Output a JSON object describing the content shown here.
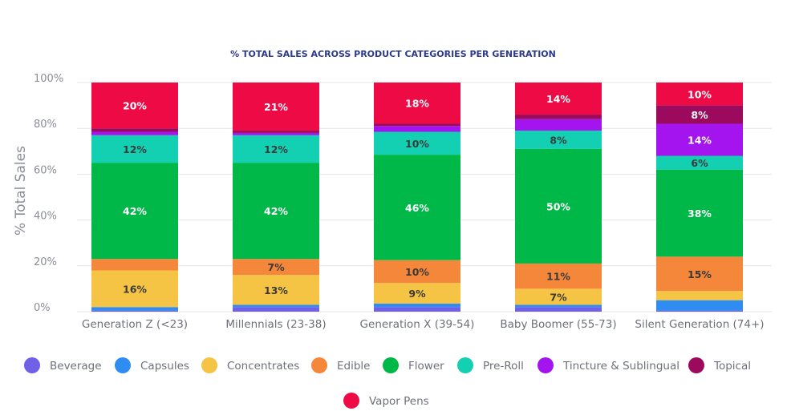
{
  "chart_data": {
    "type": "bar",
    "stacked": true,
    "title": "% TOTAL SALES ACROSS PRODUCT CATEGORIES PER GENERATION",
    "xlabel": "",
    "ylabel": "% Total Sales",
    "ylim": [
      0,
      100
    ],
    "yticks": [
      "0%",
      "20%",
      "40%",
      "60%",
      "80%",
      "100%"
    ],
    "ytick_values": [
      0,
      20,
      40,
      60,
      80,
      100
    ],
    "grid": true,
    "legend_position": "bottom",
    "categories": [
      "Generation Z (<23)",
      "Millennials (23-38)",
      "Generation X (39-54)",
      "Baby Boomer (55-73)",
      "Silent Generation (74+)"
    ],
    "series": [
      {
        "name": "Beverage",
        "color": "#7060e8",
        "values": [
          0.5,
          2,
          2,
          2,
          0.5
        ]
      },
      {
        "name": "Capsules",
        "color": "#2f8cf0",
        "values": [
          1.5,
          1,
          1.5,
          1,
          4.5
        ]
      },
      {
        "name": "Concentrates",
        "color": "#f6c445",
        "values": [
          16,
          13,
          9,
          7,
          4
        ]
      },
      {
        "name": "Edible",
        "color": "#f5873b",
        "values": [
          5,
          7,
          10,
          11,
          15
        ]
      },
      {
        "name": "Flower",
        "color": "#00b847",
        "values": [
          42,
          42,
          46,
          50,
          38
        ]
      },
      {
        "name": "Pre-Roll",
        "color": "#14d0b2",
        "values": [
          12,
          12,
          10,
          8,
          6
        ]
      },
      {
        "name": "Tincture & Sublingual",
        "color": "#a414ee",
        "values": [
          1.5,
          1,
          2.5,
          5,
          14
        ]
      },
      {
        "name": "Topical",
        "color": "#9b0a5c",
        "values": [
          1.5,
          1,
          1,
          2,
          8
        ]
      },
      {
        "name": "Vapor Pens",
        "color": "#ee0a45",
        "values": [
          20,
          21,
          18,
          14,
          10
        ]
      }
    ],
    "data_labels": [
      [
        "",
        "",
        "16%",
        "",
        "42%",
        "12%",
        "",
        "",
        "20%"
      ],
      [
        "",
        "",
        "13%",
        "7%",
        "42%",
        "12%",
        "",
        "",
        "21%"
      ],
      [
        "",
        "",
        "9%",
        "10%",
        "46%",
        "10%",
        "",
        "",
        "18%"
      ],
      [
        "",
        "",
        "7%",
        "11%",
        "50%",
        "8%",
        "",
        "",
        "14%"
      ],
      [
        "",
        "",
        "",
        "15%",
        "38%",
        "6%",
        "14%",
        "8%",
        "10%"
      ]
    ]
  }
}
